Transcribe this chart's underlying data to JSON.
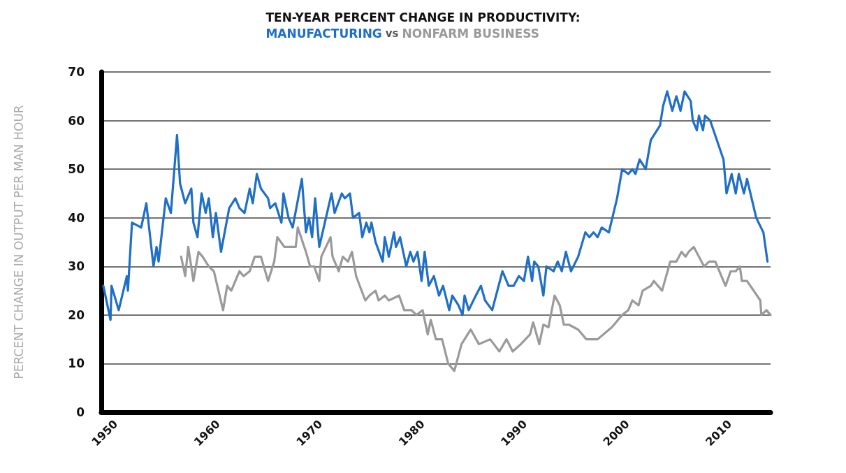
{
  "chart_data": {
    "type": "line",
    "title": "TEN-YEAR PERCENT CHANGE IN PRODUCTIVITY:",
    "annotations": [
      "vs"
    ],
    "ylabel": "PERCENT CHANGE IN OUTPUT PER MAN HOUR",
    "xlim": [
      1948.6,
      2014
    ],
    "xticks": [
      1950,
      1960,
      1970,
      1980,
      1990,
      2000,
      2010
    ],
    "ylim": [
      0,
      70
    ],
    "yticks": [
      0,
      10,
      20,
      30,
      40,
      50,
      60,
      70
    ],
    "grid": "y",
    "marker": "none",
    "line_style": "solid",
    "series": [
      {
        "name": "MANUFACTURING",
        "color": "#1f6fc6",
        "x": [
          1948.8,
          1949.5,
          1949.6,
          1950.3,
          1951.1,
          1951.2,
          1951.6,
          1952.5,
          1953.0,
          1953.7,
          1954.0,
          1954.2,
          1954.9,
          1955.4,
          1956.0,
          1956.3,
          1956.8,
          1957.4,
          1957.6,
          1958.0,
          1958.4,
          1958.8,
          1959.1,
          1959.5,
          1959.8,
          1960.3,
          1961.1,
          1961.7,
          1962.1,
          1962.6,
          1963.1,
          1963.4,
          1963.8,
          1964.2,
          1964.9,
          1965.1,
          1965.6,
          1966.2,
          1966.4,
          1966.9,
          1967.3,
          1968.2,
          1968.6,
          1968.9,
          1969.2,
          1969.5,
          1969.9,
          1971.1,
          1971.4,
          1972.1,
          1972.4,
          1972.9,
          1973.2,
          1973.8,
          1974.1,
          1974.5,
          1974.8,
          1975.0,
          1975.4,
          1976.1,
          1976.3,
          1976.7,
          1977.2,
          1977.4,
          1977.8,
          1978.4,
          1978.8,
          1979.1,
          1979.5,
          1979.9,
          1980.2,
          1980.6,
          1981.1,
          1981.6,
          1982.0,
          1982.6,
          1982.9,
          1983.5,
          1983.9,
          1984.1,
          1984.5,
          1985.2,
          1985.7,
          1986.1,
          1986.8,
          1987.8,
          1988.4,
          1988.9,
          1989.4,
          1989.9,
          1990.3,
          1990.7,
          1990.9,
          1991.3,
          1991.8,
          1992.1,
          1992.8,
          1993.2,
          1993.6,
          1994.0,
          1994.5,
          1995.2,
          1995.9,
          1996.3,
          1996.7,
          1997.1,
          1997.5,
          1998.2,
          1999.0,
          1999.5,
          2000.1,
          2000.5,
          2000.8,
          2001.2,
          2001.8,
          2002.3,
          2003.2,
          2003.5,
          2003.9,
          2004.4,
          2004.8,
          2005.2,
          2005.6,
          2006.2,
          2006.4,
          2006.8,
          2007.0,
          2007.4,
          2007.6,
          2008.1,
          2009.4,
          2009.7,
          2010.2,
          2010.6,
          2010.9,
          2011.4,
          2011.7,
          2012.6,
          2013.3,
          2013.7
        ],
        "values": [
          26,
          19,
          26,
          21,
          28,
          25,
          39,
          38,
          43,
          30,
          34,
          31,
          44,
          41,
          57,
          47,
          43,
          46,
          39,
          36,
          45,
          41,
          44,
          36,
          41,
          33,
          42,
          44,
          42,
          41,
          46,
          43,
          49,
          46,
          44,
          42,
          43,
          39,
          45,
          40,
          38,
          48,
          37,
          40,
          36,
          44,
          34,
          45,
          41,
          45,
          44,
          45,
          40,
          41,
          36,
          39,
          37,
          39,
          35,
          31,
          36,
          32,
          37,
          34,
          36,
          30,
          33,
          31,
          33,
          27,
          33,
          26,
          28,
          24,
          26,
          21,
          24,
          22,
          20,
          24,
          21,
          24,
          26,
          23,
          21,
          29,
          26,
          26,
          28,
          27,
          32,
          27,
          31,
          30,
          24,
          30,
          29,
          31,
          29,
          33,
          29,
          32,
          37,
          36,
          37,
          36,
          38,
          37,
          44,
          50,
          49,
          50,
          49,
          52,
          50,
          56,
          59,
          63,
          66,
          62,
          65,
          62,
          66,
          64,
          60,
          58,
          61,
          58,
          61,
          60,
          52,
          45,
          49,
          45,
          49,
          45,
          48,
          40,
          37,
          31
        ]
      },
      {
        "name": "NONFARM BUSINESS",
        "color": "#9a9a9a",
        "x": [
          1956.4,
          1956.8,
          1957.1,
          1957.6,
          1958.1,
          1958.5,
          1959.1,
          1959.6,
          1960.5,
          1960.9,
          1961.3,
          1962.1,
          1962.5,
          1963.1,
          1963.6,
          1964.2,
          1964.9,
          1965.5,
          1965.8,
          1966.5,
          1967.2,
          1967.6,
          1967.8,
          1968.6,
          1969.0,
          1969.4,
          1969.9,
          1970.1,
          1971.0,
          1971.2,
          1971.8,
          1972.2,
          1972.7,
          1973.1,
          1973.5,
          1974.4,
          1974.8,
          1975.4,
          1975.7,
          1976.3,
          1976.7,
          1977.7,
          1978.2,
          1978.9,
          1979.4,
          1980.0,
          1980.5,
          1980.8,
          1981.3,
          1981.9,
          1982.5,
          1983.1,
          1983.8,
          1984.1,
          1984.7,
          1985.5,
          1986.6,
          1987.5,
          1988.2,
          1988.8,
          1989.6,
          1990.5,
          1990.8,
          1991.4,
          1991.8,
          1992.3,
          1992.9,
          1993.4,
          1993.8,
          1994.3,
          1995.2,
          1996.0,
          1997.1,
          1998.5,
          1999.5,
          2000.1,
          2000.5,
          2001.1,
          2001.5,
          2002.3,
          2002.6,
          2003.4,
          2004.2,
          2004.8,
          2005.3,
          2005.7,
          2006.0,
          2006.5,
          2007.0,
          2007.5,
          2008.0,
          2008.6,
          2009.6,
          2010.1,
          2010.6,
          2011.0,
          2011.2,
          2011.7,
          2013.0,
          2013.1,
          2013.6,
          2014.0
        ],
        "values": [
          32,
          28,
          34,
          27,
          33,
          32,
          30,
          29,
          21,
          26,
          25,
          29,
          28,
          29,
          32,
          32,
          27,
          31,
          36,
          34,
          34,
          34,
          38,
          33,
          30,
          30,
          27,
          32,
          36,
          32,
          29,
          32,
          31,
          33,
          28,
          23,
          24,
          25,
          23,
          24,
          23,
          24,
          21,
          21,
          20,
          21,
          16,
          19,
          15,
          15,
          10,
          8.5,
          14,
          15,
          17,
          14,
          15,
          12.5,
          15,
          12.5,
          14,
          16,
          18.5,
          14,
          18,
          17.5,
          24,
          22,
          18,
          18,
          17,
          15,
          15,
          17.5,
          20,
          21,
          23,
          22,
          25,
          26,
          27,
          25,
          31,
          31,
          33,
          32,
          33,
          34,
          32,
          30,
          31,
          31,
          26,
          29,
          29,
          30,
          27,
          27,
          23,
          20,
          21,
          20
        ]
      }
    ]
  }
}
